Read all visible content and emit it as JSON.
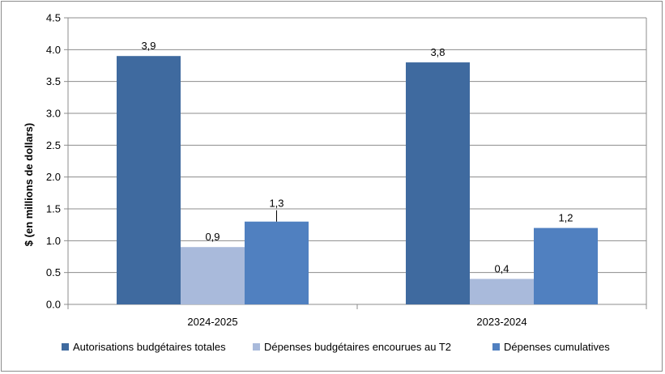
{
  "chart_data": {
    "type": "bar",
    "title": "",
    "xlabel": "",
    "ylabel": "$ (en millions de dollars)",
    "ylim": [
      0,
      4.5
    ],
    "yticks": [
      "0.0",
      "0.5",
      "1.0",
      "1.5",
      "2.0",
      "2.5",
      "3.0",
      "3.5",
      "4.0",
      "4.5"
    ],
    "ytick_values": [
      0,
      0.5,
      1,
      1.5,
      2,
      2.5,
      3,
      3.5,
      4,
      4.5
    ],
    "grid": true,
    "legend_position": "bottom",
    "categories": [
      "2024-2025",
      "2023-2024"
    ],
    "series": [
      {
        "name": "Autorisations budgétaires totales",
        "color": "#3F6A9F",
        "values": [
          3.9,
          3.8
        ],
        "labels": [
          "3,9",
          "3,8"
        ]
      },
      {
        "name": "Dépenses budgétaires encourues au T2",
        "color": "#A9BADB",
        "values": [
          0.9,
          0.4
        ],
        "labels": [
          "0,9",
          "0,4"
        ]
      },
      {
        "name": "Dépenses cumulatives",
        "color": "#5080C0",
        "values": [
          1.3,
          1.2
        ],
        "labels": [
          "1,3",
          "1,2"
        ]
      }
    ]
  }
}
